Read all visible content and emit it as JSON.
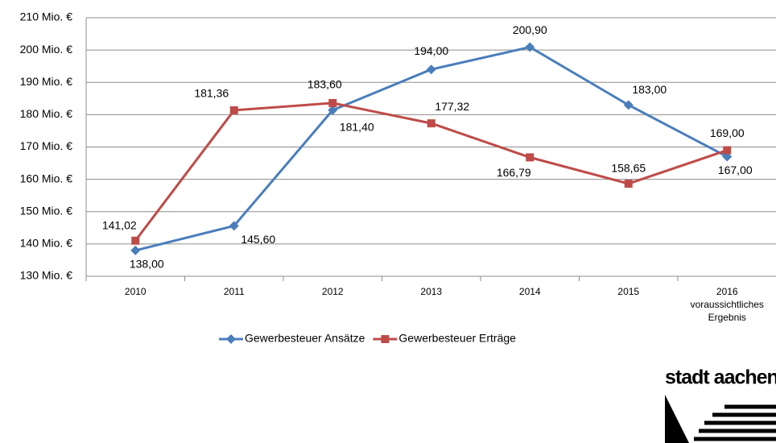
{
  "chart_data": {
    "type": "line",
    "categories": [
      "2010",
      "2011",
      "2012",
      "2013",
      "2014",
      "2015",
      "2016 voraussichtliches Ergebnis"
    ],
    "series": [
      {
        "name": "Gewerbesteuer Ansätze",
        "color": "#4a7ebb",
        "marker": "diamond",
        "values": [
          138,
          145.6,
          181.4,
          194,
          200.9,
          183,
          167
        ],
        "value_labels": [
          "138,00",
          "145,60",
          "181,40",
          "194,00",
          "200,90",
          "183,00",
          "167,00"
        ]
      },
      {
        "name": "Gewerbesteuer Erträge",
        "color": "#be4b48",
        "marker": "square",
        "values": [
          141.02,
          181.36,
          183.6,
          177.32,
          166.79,
          158.65,
          169
        ],
        "value_labels": [
          "141,02",
          "181,36",
          "183,60",
          "177,32",
          "166,79",
          "158,65",
          "169,00"
        ]
      }
    ],
    "ylim": [
      130,
      210
    ],
    "yticks": [
      {
        "value": 130,
        "label": "130 Mio. €"
      },
      {
        "value": 140,
        "label": "140 Mio. €"
      },
      {
        "value": 150,
        "label": "150 Mio. €"
      },
      {
        "value": 160,
        "label": "160 Mio. €"
      },
      {
        "value": 170,
        "label": "170 Mio. €"
      },
      {
        "value": 180,
        "label": "180 Mio. €"
      },
      {
        "value": 190,
        "label": "190 Mio. €"
      },
      {
        "value": 200,
        "label": "200 Mio. €"
      },
      {
        "value": 210,
        "label": "210 Mio. €"
      }
    ],
    "grid": true,
    "legend": "bottom"
  },
  "logo": "stadt aachen"
}
